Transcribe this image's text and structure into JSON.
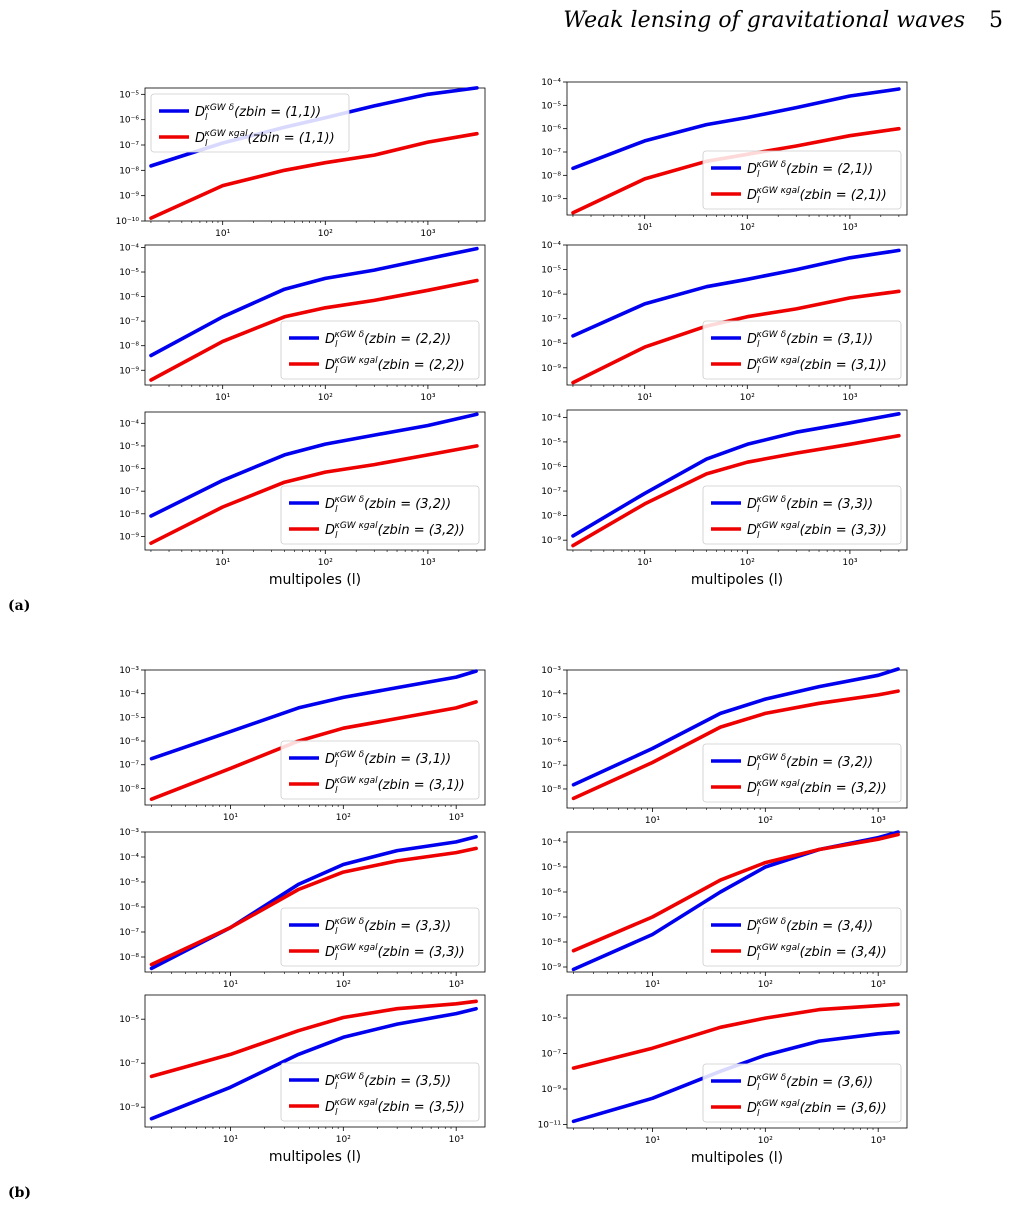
{
  "header": {
    "title": "Weak lensing of gravitational waves",
    "page_number": "5"
  },
  "panel_labels": {
    "a": "(a)",
    "b": "(b)"
  },
  "colors": {
    "blue": "#0000ee",
    "red": "#ee0000"
  },
  "chart_data": [
    {
      "type": "line",
      "scale": "log-log",
      "xlabel": "",
      "legend": "top-left",
      "xmax": 3000,
      "yrange_exp": [
        -10,
        -4.75
      ],
      "yticks": [
        -10,
        -9,
        -8,
        -7,
        -6,
        -5
      ],
      "series": [
        {
          "name": "D_l^{κGW δ}(zbin = (1,1))",
          "color": "blue",
          "values": [
            [
              2,
              1.5e-08
            ],
            [
              10,
              1.2e-07
            ],
            [
              40,
              5e-07
            ],
            [
              100,
              1.2e-06
            ],
            [
              300,
              3.5e-06
            ],
            [
              1000,
              1e-05
            ],
            [
              3000,
              1.8e-05
            ]
          ]
        },
        {
          "name": "D_l^{κGW κgal}(zbin = (1,1))",
          "color": "red",
          "values": [
            [
              2,
              1.3e-10
            ],
            [
              10,
              2.5e-09
            ],
            [
              40,
              1e-08
            ],
            [
              100,
              2e-08
            ],
            [
              300,
              4e-08
            ],
            [
              1000,
              1.3e-07
            ],
            [
              3000,
              2.8e-07
            ]
          ]
        }
      ]
    },
    {
      "type": "line",
      "scale": "log-log",
      "xlabel": "",
      "legend": "bottom-right",
      "xmax": 3000,
      "yrange_exp": [
        -9.7,
        -4
      ],
      "yticks": [
        -9,
        -8,
        -7,
        -6,
        -5,
        -4
      ],
      "series": [
        {
          "name": "D_l^{κGW δ}(zbin = (2,1))",
          "color": "blue",
          "values": [
            [
              2,
              2e-08
            ],
            [
              10,
              3e-07
            ],
            [
              40,
              1.5e-06
            ],
            [
              100,
              3e-06
            ],
            [
              300,
              8e-06
            ],
            [
              1000,
              2.5e-05
            ],
            [
              3000,
              5e-05
            ]
          ]
        },
        {
          "name": "D_l^{κGW κgal}(zbin = (2,1))",
          "color": "red",
          "values": [
            [
              2,
              2.5e-10
            ],
            [
              10,
              7e-09
            ],
            [
              40,
              4e-08
            ],
            [
              100,
              8e-08
            ],
            [
              300,
              1.8e-07
            ],
            [
              1000,
              5e-07
            ],
            [
              3000,
              1e-06
            ]
          ]
        }
      ]
    },
    {
      "type": "line",
      "scale": "log-log",
      "xlabel": "",
      "legend": "bottom-right",
      "xmax": 3000,
      "yrange_exp": [
        -9.6,
        -3.9
      ],
      "yticks": [
        -9,
        -8,
        -7,
        -6,
        -5,
        -4
      ],
      "series": [
        {
          "name": "D_l^{κGW δ}(zbin = (2,2))",
          "color": "blue",
          "values": [
            [
              2,
              4e-09
            ],
            [
              10,
              1.5e-07
            ],
            [
              40,
              2e-06
            ],
            [
              100,
              5.5e-06
            ],
            [
              300,
              1.2e-05
            ],
            [
              1000,
              3.5e-05
            ],
            [
              3000,
              9e-05
            ]
          ]
        },
        {
          "name": "D_l^{κGW κgal}(zbin = (2,2))",
          "color": "red",
          "values": [
            [
              2,
              4e-10
            ],
            [
              10,
              1.5e-08
            ],
            [
              40,
              1.5e-07
            ],
            [
              100,
              3.5e-07
            ],
            [
              300,
              7e-07
            ],
            [
              1000,
              1.8e-06
            ],
            [
              3000,
              4.5e-06
            ]
          ]
        }
      ]
    },
    {
      "type": "line",
      "scale": "log-log",
      "xlabel": "",
      "legend": "bottom-right",
      "xmax": 3000,
      "yrange_exp": [
        -9.7,
        -4
      ],
      "yticks": [
        -9,
        -8,
        -7,
        -6,
        -5,
        -4
      ],
      "series": [
        {
          "name": "D_l^{κGW δ}(zbin = (3,1))",
          "color": "blue",
          "values": [
            [
              2,
              2e-08
            ],
            [
              10,
              4e-07
            ],
            [
              40,
              2e-06
            ],
            [
              100,
              4e-06
            ],
            [
              300,
              1e-05
            ],
            [
              1000,
              3e-05
            ],
            [
              3000,
              6e-05
            ]
          ]
        },
        {
          "name": "D_l^{κGW κgal}(zbin = (3,1))",
          "color": "red",
          "values": [
            [
              2,
              2.5e-10
            ],
            [
              10,
              7e-09
            ],
            [
              40,
              5e-08
            ],
            [
              100,
              1.2e-07
            ],
            [
              300,
              2.5e-07
            ],
            [
              1000,
              7e-07
            ],
            [
              3000,
              1.3e-06
            ]
          ]
        }
      ]
    },
    {
      "type": "line",
      "scale": "log-log",
      "xlabel": "multipoles (l)",
      "legend": "bottom-right",
      "xmax": 3000,
      "yrange_exp": [
        -9.6,
        -3.5
      ],
      "yticks": [
        -9,
        -8,
        -7,
        -6,
        -5,
        -4
      ],
      "series": [
        {
          "name": "D_l^{κGW δ}(zbin = (3,2))",
          "color": "blue",
          "values": [
            [
              2,
              8e-09
            ],
            [
              10,
              3e-07
            ],
            [
              40,
              4e-06
            ],
            [
              100,
              1.2e-05
            ],
            [
              300,
              3e-05
            ],
            [
              1000,
              8e-05
            ],
            [
              3000,
              0.00025
            ]
          ]
        },
        {
          "name": "D_l^{κGW κgal}(zbin = (3,2))",
          "color": "red",
          "values": [
            [
              2,
              5e-10
            ],
            [
              10,
              2e-08
            ],
            [
              40,
              2.5e-07
            ],
            [
              100,
              7e-07
            ],
            [
              300,
              1.5e-06
            ],
            [
              1000,
              4e-06
            ],
            [
              3000,
              1e-05
            ]
          ]
        }
      ]
    },
    {
      "type": "line",
      "scale": "log-log",
      "xlabel": "multipoles (l)",
      "legend": "bottom-right",
      "xmax": 3000,
      "yrange_exp": [
        -9.4,
        -3.7
      ],
      "yticks": [
        -9,
        -8,
        -7,
        -6,
        -5,
        -4
      ],
      "series": [
        {
          "name": "D_l^{κGW δ}(zbin = (3,3))",
          "color": "blue",
          "values": [
            [
              2,
              1.5e-09
            ],
            [
              10,
              8e-08
            ],
            [
              40,
              2e-06
            ],
            [
              100,
              8e-06
            ],
            [
              300,
              2.5e-05
            ],
            [
              1000,
              6e-05
            ],
            [
              3000,
              0.00014
            ]
          ]
        },
        {
          "name": "D_l^{κGW κgal}(zbin = (3,3))",
          "color": "red",
          "values": [
            [
              2,
              6e-10
            ],
            [
              10,
              3e-08
            ],
            [
              40,
              5e-07
            ],
            [
              100,
              1.5e-06
            ],
            [
              300,
              3.5e-06
            ],
            [
              1000,
              8e-06
            ],
            [
              3000,
              1.8e-05
            ]
          ]
        }
      ]
    },
    {
      "type": "line",
      "scale": "log-log",
      "xlabel": "",
      "legend": "bottom-right",
      "xmax": 1500,
      "yrange_exp": [
        -8.7,
        -3
      ],
      "yticks": [
        -8,
        -7,
        -6,
        -5,
        -4,
        -3
      ],
      "series": [
        {
          "name": "D_l^{κGW δ}(zbin = (3,1))",
          "color": "blue",
          "values": [
            [
              2,
              1.8e-07
            ],
            [
              10,
              2.5e-06
            ],
            [
              40,
              2.5e-05
            ],
            [
              100,
              7e-05
            ],
            [
              300,
              0.00018
            ],
            [
              1000,
              0.0005
            ],
            [
              1500,
              0.0009
            ]
          ]
        },
        {
          "name": "D_l^{κGW κgal}(zbin = (3,1))",
          "color": "red",
          "values": [
            [
              2,
              3.5e-09
            ],
            [
              10,
              7e-08
            ],
            [
              40,
              1e-06
            ],
            [
              100,
              3.5e-06
            ],
            [
              300,
              9e-06
            ],
            [
              1000,
              2.5e-05
            ],
            [
              1500,
              4.5e-05
            ]
          ]
        }
      ]
    },
    {
      "type": "line",
      "scale": "log-log",
      "xlabel": "",
      "legend": "bottom-right",
      "xmax": 1500,
      "yrange_exp": [
        -8.8,
        -3
      ],
      "yticks": [
        -8,
        -7,
        -6,
        -5,
        -4,
        -3
      ],
      "series": [
        {
          "name": "D_l^{κGW δ}(zbin = (3,2))",
          "color": "blue",
          "values": [
            [
              2,
              1.5e-08
            ],
            [
              10,
              5e-07
            ],
            [
              40,
              1.5e-05
            ],
            [
              100,
              6e-05
            ],
            [
              300,
              0.0002
            ],
            [
              1000,
              0.0006
            ],
            [
              1500,
              0.0011
            ]
          ]
        },
        {
          "name": "D_l^{κGW κgal}(zbin = (3,2))",
          "color": "red",
          "values": [
            [
              2,
              4e-09
            ],
            [
              10,
              1.3e-07
            ],
            [
              40,
              4e-06
            ],
            [
              100,
              1.5e-05
            ],
            [
              300,
              4e-05
            ],
            [
              1000,
              9e-05
            ],
            [
              1500,
              0.00013
            ]
          ]
        }
      ]
    },
    {
      "type": "line",
      "scale": "log-log",
      "xlabel": "",
      "legend": "bottom-right",
      "xmax": 1500,
      "yrange_exp": [
        -8.6,
        -3
      ],
      "yticks": [
        -8,
        -7,
        -6,
        -5,
        -4,
        -3
      ],
      "series": [
        {
          "name": "D_l^{κGW δ}(zbin = (3,3))",
          "color": "blue",
          "values": [
            [
              2,
              3.5e-09
            ],
            [
              10,
              1.5e-07
            ],
            [
              40,
              8e-06
            ],
            [
              100,
              5e-05
            ],
            [
              300,
              0.00018
            ],
            [
              1000,
              0.0004
            ],
            [
              1500,
              0.00065
            ]
          ]
        },
        {
          "name": "D_l^{κGW κgal}(zbin = (3,3))",
          "color": "red",
          "values": [
            [
              2,
              5e-09
            ],
            [
              10,
              1.5e-07
            ],
            [
              40,
              5e-06
            ],
            [
              100,
              2.5e-05
            ],
            [
              300,
              7e-05
            ],
            [
              1000,
              0.00015
            ],
            [
              1500,
              0.00022
            ]
          ]
        }
      ]
    },
    {
      "type": "line",
      "scale": "log-log",
      "xlabel": "",
      "legend": "bottom-right",
      "xmax": 1500,
      "yrange_exp": [
        -9.2,
        -3.6
      ],
      "yticks": [
        -9,
        -8,
        -7,
        -6,
        -5,
        -4
      ],
      "series": [
        {
          "name": "D_l^{κGW δ}(zbin = (3,4))",
          "color": "blue",
          "values": [
            [
              2,
              8e-10
            ],
            [
              10,
              2e-08
            ],
            [
              40,
              1e-06
            ],
            [
              100,
              1e-05
            ],
            [
              300,
              5e-05
            ],
            [
              1000,
              0.00015
            ],
            [
              1500,
              0.00025
            ]
          ]
        },
        {
          "name": "D_l^{κGW κgal}(zbin = (3,4))",
          "color": "red",
          "values": [
            [
              2,
              4.5e-09
            ],
            [
              10,
              1e-07
            ],
            [
              40,
              3e-06
            ],
            [
              100,
              1.5e-05
            ],
            [
              300,
              5e-05
            ],
            [
              1000,
              0.00013
            ],
            [
              1500,
              0.0002
            ]
          ]
        }
      ]
    },
    {
      "type": "line",
      "scale": "log-log",
      "xlabel": "multipoles (l)",
      "legend": "bottom-right",
      "xmax": 1500,
      "yrange_exp": [
        -9.9,
        -3.9
      ],
      "yticks": [
        -9,
        -7,
        -5
      ],
      "series": [
        {
          "name": "D_l^{κGW δ}(zbin = (3,5))",
          "color": "blue",
          "values": [
            [
              2,
              3e-10
            ],
            [
              10,
              8e-09
            ],
            [
              40,
              2.5e-07
            ],
            [
              100,
              1.5e-06
            ],
            [
              300,
              6e-06
            ],
            [
              1000,
              1.8e-05
            ],
            [
              1500,
              3e-05
            ]
          ]
        },
        {
          "name": "D_l^{κGW κgal}(zbin = (3,5))",
          "color": "red",
          "values": [
            [
              2,
              2.5e-08
            ],
            [
              10,
              2.5e-07
            ],
            [
              40,
              3e-06
            ],
            [
              100,
              1.2e-05
            ],
            [
              300,
              3e-05
            ],
            [
              1000,
              5e-05
            ],
            [
              1500,
              6.5e-05
            ]
          ]
        }
      ]
    },
    {
      "type": "line",
      "scale": "log-log",
      "xlabel": "multipoles (l)",
      "legend": "bottom-right",
      "xmax": 1500,
      "yrange_exp": [
        -11.2,
        -3.7
      ],
      "yticks": [
        -11,
        -9,
        -7,
        -5
      ],
      "series": [
        {
          "name": "D_l^{κGW δ}(zbin = (3,6))",
          "color": "blue",
          "values": [
            [
              2,
              1.5e-11
            ],
            [
              10,
              3e-10
            ],
            [
              40,
              1e-08
            ],
            [
              100,
              8e-08
            ],
            [
              300,
              5e-07
            ],
            [
              1000,
              1.3e-06
            ],
            [
              1500,
              1.6e-06
            ]
          ]
        },
        {
          "name": "D_l^{κGW κgal}(zbin = (3,6))",
          "color": "red",
          "values": [
            [
              2,
              1.5e-08
            ],
            [
              10,
              2e-07
            ],
            [
              40,
              3e-06
            ],
            [
              100,
              1e-05
            ],
            [
              300,
              3e-05
            ],
            [
              1000,
              5e-05
            ],
            [
              1500,
              6e-05
            ]
          ]
        }
      ]
    }
  ]
}
